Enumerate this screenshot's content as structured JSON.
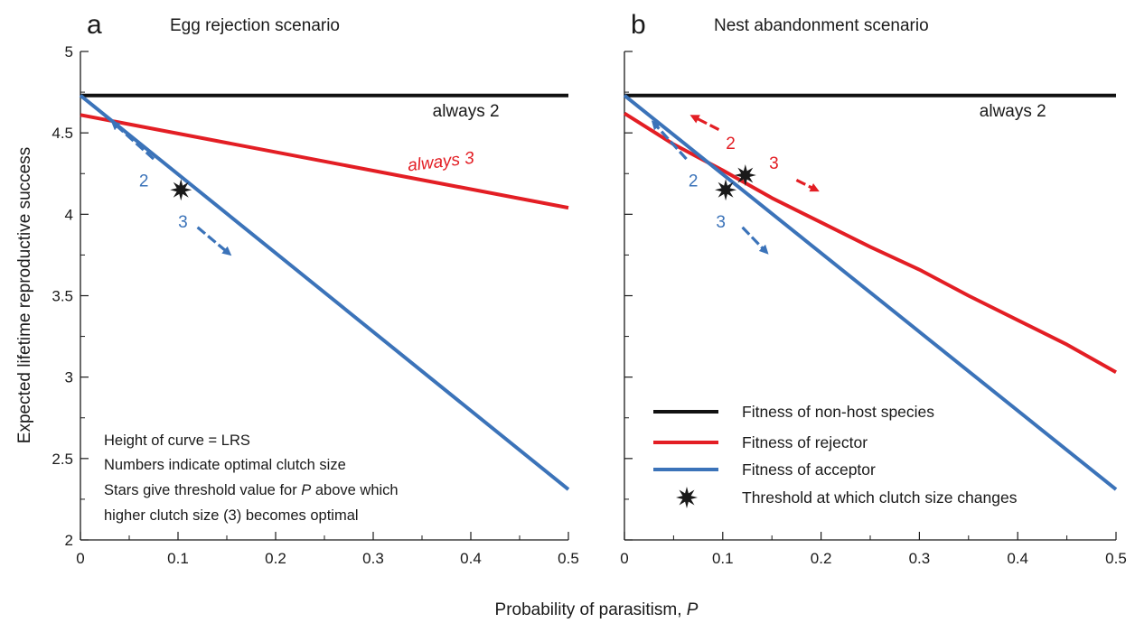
{
  "figure": {
    "xlabel_prefix": "Probability of parasitism, ",
    "xlabel_var": "P",
    "ylabel": "Expected lifetime reproductive success"
  },
  "chart_data": [
    {
      "type": "line",
      "panel": "a",
      "title": "Egg rejection scenario",
      "xlabel": "Probability of parasitism, P",
      "ylabel": "Expected lifetime reproductive success",
      "xlim": [
        0,
        0.5
      ],
      "ylim": [
        2,
        5
      ],
      "xticks": [
        0,
        0.1,
        0.2,
        0.3,
        0.4,
        0.5
      ],
      "xtick_labels": [
        "0",
        "0.1",
        "0.2",
        "0.3",
        "0.4",
        "0.5"
      ],
      "yticks": [
        2,
        2.5,
        3,
        3.5,
        4,
        4.5,
        5
      ],
      "ytick_labels": [
        "2",
        "2.5",
        "3",
        "3.5",
        "4",
        "4.5",
        "5"
      ],
      "series": [
        {
          "role": "non-host",
          "color": "#111111",
          "x": [
            0,
            0.5
          ],
          "y": [
            4.73,
            4.73
          ]
        },
        {
          "role": "rejector",
          "color": "#e31e24",
          "x": [
            0,
            0.5
          ],
          "y": [
            4.61,
            4.04
          ]
        },
        {
          "role": "acceptor",
          "color": "#3b73b9",
          "x": [
            0,
            0.5
          ],
          "y": [
            4.73,
            2.31
          ]
        }
      ],
      "thresholds": [
        {
          "x": 0.103,
          "y": 4.15,
          "color": "#1a1a1a"
        }
      ],
      "curve_labels": [
        {
          "text": "always 2",
          "x": 0.395,
          "y": 4.6,
          "color": "#1a1a1a",
          "italic": false
        },
        {
          "text": "always 3",
          "x": 0.37,
          "y": 4.29,
          "color": "#e31e24",
          "italic": true,
          "rotate": -7
        }
      ],
      "direction_arrows": [
        {
          "label": "2",
          "color": "#3b73b9",
          "from": [
            0.075,
            4.34
          ],
          "to": [
            0.034,
            4.56
          ],
          "label_at": [
            0.065,
            4.17
          ]
        },
        {
          "label": "3",
          "color": "#3b73b9",
          "from": [
            0.12,
            3.92
          ],
          "to": [
            0.152,
            3.76
          ],
          "label_at": [
            0.105,
            3.92
          ]
        }
      ],
      "notes": [
        "Height of curve = LRS",
        "Numbers indicate optimal clutch size",
        "Stars give threshold value for P above which",
        "higher clutch size (3) becomes optimal"
      ]
    },
    {
      "type": "line",
      "panel": "b",
      "title": "Nest abandonment scenario",
      "xlabel": "Probability of parasitism, P",
      "ylabel": "Expected lifetime reproductive success",
      "xlim": [
        0,
        0.5
      ],
      "ylim": [
        2,
        5
      ],
      "xticks": [
        0,
        0.1,
        0.2,
        0.3,
        0.4,
        0.5
      ],
      "xtick_labels": [
        "0",
        "0.1",
        "0.2",
        "0.3",
        "0.4",
        "0.5"
      ],
      "yticks": [
        2,
        2.5,
        3,
        3.5,
        4,
        4.5,
        5
      ],
      "series": [
        {
          "role": "non-host",
          "color": "#111111",
          "x": [
            0,
            0.5
          ],
          "y": [
            4.73,
            4.73
          ]
        },
        {
          "role": "rejector",
          "color": "#e31e24",
          "x": [
            0,
            0.05,
            0.1,
            0.15,
            0.2,
            0.25,
            0.3,
            0.35,
            0.4,
            0.45,
            0.5
          ],
          "y": [
            4.62,
            4.43,
            4.27,
            4.1,
            3.95,
            3.8,
            3.66,
            3.5,
            3.35,
            3.2,
            3.03
          ]
        },
        {
          "role": "acceptor",
          "color": "#3b73b9",
          "x": [
            0,
            0.5
          ],
          "y": [
            4.73,
            2.31
          ]
        }
      ],
      "thresholds": [
        {
          "x": 0.103,
          "y": 4.15,
          "color": "#1a1a1a"
        },
        {
          "x": 0.123,
          "y": 4.24,
          "color": "#1a1a1a"
        }
      ],
      "curve_labels": [
        {
          "text": "always 2",
          "x": 0.395,
          "y": 4.6,
          "color": "#1a1a1a",
          "italic": false
        }
      ],
      "direction_arrows": [
        {
          "label": "2",
          "color": "#3b73b9",
          "from": [
            0.063,
            4.34
          ],
          "to": [
            0.03,
            4.56
          ],
          "label_at": [
            0.07,
            4.17
          ]
        },
        {
          "label": "3",
          "color": "#3b73b9",
          "from": [
            0.12,
            3.92
          ],
          "to": [
            0.144,
            3.77
          ],
          "label_at": [
            0.098,
            3.92
          ]
        },
        {
          "label": "2",
          "color": "#e31e24",
          "from": [
            0.096,
            4.52
          ],
          "to": [
            0.07,
            4.6
          ],
          "label_at": [
            0.108,
            4.4
          ]
        },
        {
          "label": "3",
          "color": "#e31e24",
          "from": [
            0.175,
            4.21
          ],
          "to": [
            0.195,
            4.15
          ],
          "label_at": [
            0.152,
            4.28
          ]
        }
      ],
      "legend": {
        "placement": "bottom-left",
        "entries": [
          {
            "label": "Fitness of non-host species",
            "kind": "line",
            "color": "#111111"
          },
          {
            "label": "Fitness of rejector",
            "kind": "line",
            "color": "#e31e24"
          },
          {
            "label": "Fitness of acceptor",
            "kind": "line",
            "color": "#3b73b9"
          },
          {
            "label": "Threshold at which clutch size changes",
            "kind": "star",
            "color": "#1a1a1a"
          }
        ]
      }
    }
  ]
}
